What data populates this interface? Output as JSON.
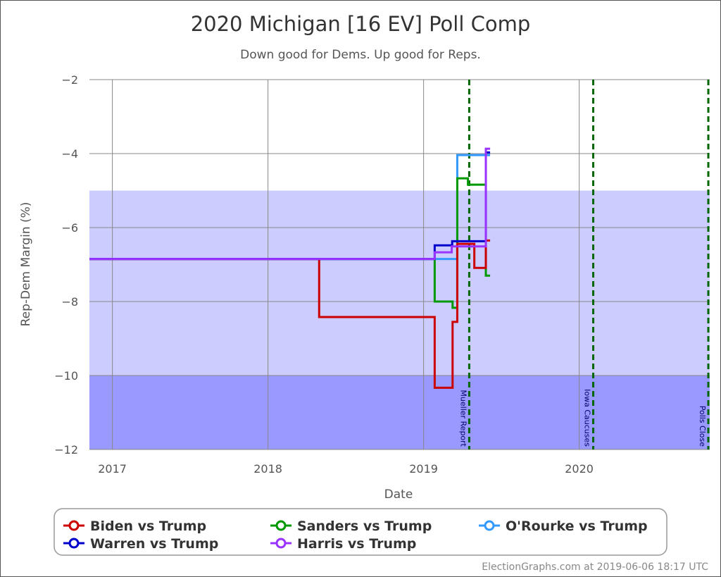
{
  "chart_data": {
    "type": "line",
    "step": true,
    "title": "2020 Michigan [16 EV] Poll Comp",
    "subtitle": "Down good for Dems. Up good for Reps.",
    "xlabel": "Date",
    "ylabel": "Rep-Dem Margin (%)",
    "xlim": [
      "2016-11-08",
      "2020-11-03"
    ],
    "ylim": [
      -12,
      -2
    ],
    "grid": true,
    "x_ticks": [
      "2017",
      "2018",
      "2019",
      "2020"
    ],
    "y_ticks": [
      -2,
      -4,
      -6,
      -8,
      -10,
      -12
    ],
    "y_tick_labels": [
      "−2",
      "−4",
      "−6",
      "−8",
      "−10",
      "−12"
    ],
    "bands": [
      {
        "from": -10,
        "to": -5,
        "color": "#ccccff"
      },
      {
        "from": -12,
        "to": -10,
        "color": "#9999ff"
      }
    ],
    "events": [
      {
        "label": "Mueller Report",
        "date": "2019-04-18",
        "color": "#006600"
      },
      {
        "label": "Iowa Caucuses",
        "date": "2020-02-03",
        "color": "#006600"
      },
      {
        "label": "Polls Close",
        "date": "2020-11-03",
        "color": "#006600"
      }
    ],
    "legend_position": "bottom",
    "series": [
      {
        "name": "Biden vs Trump",
        "color": "#cc0000",
        "points": [
          [
            "2016-11-08",
            -6.85
          ],
          [
            "2018-05-01",
            -8.42
          ],
          [
            "2019-01-27",
            -10.33
          ],
          [
            "2019-03-10",
            -8.55
          ],
          [
            "2019-03-21",
            -6.44
          ],
          [
            "2019-04-30",
            -7.09
          ],
          [
            "2019-05-27",
            -6.35
          ],
          [
            "2019-06-06",
            -6.35
          ]
        ]
      },
      {
        "name": "Sanders vs Trump",
        "color": "#009900",
        "points": [
          [
            "2016-11-08",
            -6.85
          ],
          [
            "2019-01-27",
            -8.0
          ],
          [
            "2019-03-10",
            -8.17
          ],
          [
            "2019-03-21",
            -4.67
          ],
          [
            "2019-04-15",
            -4.84
          ],
          [
            "2019-05-27",
            -7.3
          ],
          [
            "2019-06-06",
            -7.3
          ]
        ]
      },
      {
        "name": "O'Rourke vs Trump",
        "color": "#3399ff",
        "points": [
          [
            "2016-11-08",
            -6.85
          ],
          [
            "2019-03-21",
            -4.04
          ],
          [
            "2019-06-06",
            -4.04
          ]
        ]
      },
      {
        "name": "Warren vs Trump",
        "color": "#0000cc",
        "points": [
          [
            "2016-11-08",
            -6.85
          ],
          [
            "2019-01-27",
            -6.48
          ],
          [
            "2019-03-09",
            -6.37
          ],
          [
            "2019-05-27",
            -3.97
          ],
          [
            "2019-06-06",
            -3.97
          ]
        ]
      },
      {
        "name": "Harris vs Trump",
        "color": "#9933ff",
        "points": [
          [
            "2016-11-08",
            -6.85
          ],
          [
            "2019-01-27",
            -6.67
          ],
          [
            "2019-03-08",
            -6.51
          ],
          [
            "2019-05-27",
            -3.87
          ],
          [
            "2019-06-06",
            -3.87
          ]
        ]
      }
    ]
  },
  "footer": "ElectionGraphs.com at 2019-06-06 18:17 UTC"
}
